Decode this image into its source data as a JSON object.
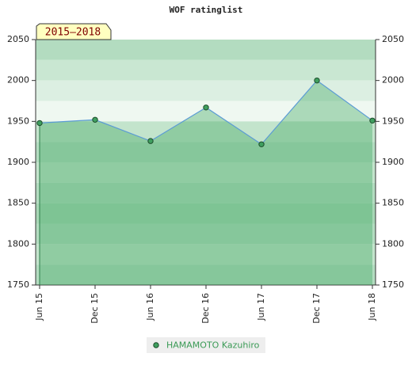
{
  "chart_data": {
    "type": "line",
    "title": "WOF ratinglist",
    "period_label": "2015–2018",
    "categories": [
      "Jun 15",
      "Dec 15",
      "Jun 16",
      "Dec 16",
      "Jun 17",
      "Dec 17",
      "Jun 18"
    ],
    "series": [
      {
        "name": "HAMAMOTO Kazuhiro",
        "color": "#5b9bd5",
        "marker_color": "#3f9f5f",
        "values": [
          1948,
          1952,
          1926,
          1967,
          1922,
          2000,
          1951
        ]
      }
    ],
    "ylim": [
      1750,
      2050
    ],
    "yticks": [
      1750,
      1800,
      1850,
      1900,
      1950,
      2000,
      2050
    ],
    "y2lim": [
      1750,
      2050
    ],
    "y2ticks": [
      1750,
      1800,
      1850,
      1900,
      1950,
      2000,
      2050
    ],
    "area": true
  }
}
